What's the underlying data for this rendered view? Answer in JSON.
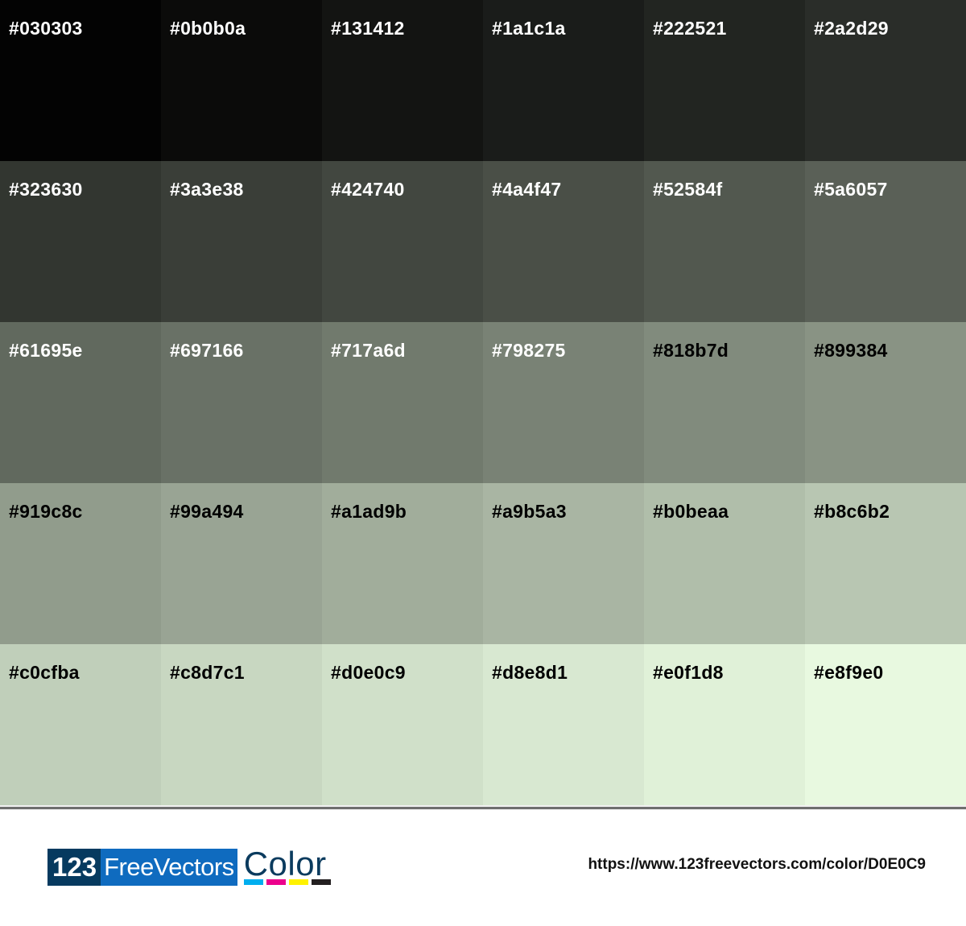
{
  "swatches": [
    {
      "hex": "#030303",
      "label": "#030303",
      "text": "#ffffff"
    },
    {
      "hex": "#0b0b0a",
      "label": "#0b0b0a",
      "text": "#ffffff"
    },
    {
      "hex": "#131412",
      "label": "#131412",
      "text": "#ffffff"
    },
    {
      "hex": "#1a1c1a",
      "label": "#1a1c1a",
      "text": "#ffffff"
    },
    {
      "hex": "#222521",
      "label": "#222521",
      "text": "#ffffff"
    },
    {
      "hex": "#2a2d29",
      "label": "#2a2d29",
      "text": "#ffffff"
    },
    {
      "hex": "#323630",
      "label": "#323630",
      "text": "#ffffff"
    },
    {
      "hex": "#3a3e38",
      "label": "#3a3e38",
      "text": "#ffffff"
    },
    {
      "hex": "#424740",
      "label": "#424740",
      "text": "#ffffff"
    },
    {
      "hex": "#4a4f47",
      "label": "#4a4f47",
      "text": "#ffffff"
    },
    {
      "hex": "#52584f",
      "label": "#52584f",
      "text": "#ffffff"
    },
    {
      "hex": "#5a6057",
      "label": "#5a6057",
      "text": "#ffffff"
    },
    {
      "hex": "#61695e",
      "label": "#61695e",
      "text": "#ffffff"
    },
    {
      "hex": "#697166",
      "label": "#697166",
      "text": "#ffffff"
    },
    {
      "hex": "#717a6d",
      "label": "#717a6d",
      "text": "#ffffff"
    },
    {
      "hex": "#798275",
      "label": "#798275",
      "text": "#ffffff"
    },
    {
      "hex": "#818b7d",
      "label": "#818b7d",
      "text": "#000000"
    },
    {
      "hex": "#899384",
      "label": "#899384",
      "text": "#000000"
    },
    {
      "hex": "#919c8c",
      "label": "#919c8c",
      "text": "#000000"
    },
    {
      "hex": "#99a494",
      "label": "#99a494",
      "text": "#000000"
    },
    {
      "hex": "#a1ad9b",
      "label": "#a1ad9b",
      "text": "#000000"
    },
    {
      "hex": "#a9b5a3",
      "label": "#a9b5a3",
      "text": "#000000"
    },
    {
      "hex": "#b0beaa",
      "label": "#b0beaa",
      "text": "#000000"
    },
    {
      "hex": "#b8c6b2",
      "label": "#b8c6b2",
      "text": "#000000"
    },
    {
      "hex": "#c0cfba",
      "label": "#c0cfba",
      "text": "#000000"
    },
    {
      "hex": "#c8d7c1",
      "label": "#c8d7c1",
      "text": "#000000"
    },
    {
      "hex": "#d0e0c9",
      "label": "#d0e0c9",
      "text": "#000000"
    },
    {
      "hex": "#d8e8d1",
      "label": "#d8e8d1",
      "text": "#000000"
    },
    {
      "hex": "#e0f1d8",
      "label": "#e0f1d8",
      "text": "#000000"
    },
    {
      "hex": "#e8f9e0",
      "label": "#e8f9e0",
      "text": "#000000"
    }
  ],
  "footer": {
    "logo": {
      "part1": "123",
      "part2": "FreeVectors",
      "part3": "Color",
      "cmyk": [
        "#00aeef",
        "#ec008c",
        "#fff200",
        "#231f20"
      ]
    },
    "url": "https://www.123freevectors.com/color/D0E0C9"
  }
}
